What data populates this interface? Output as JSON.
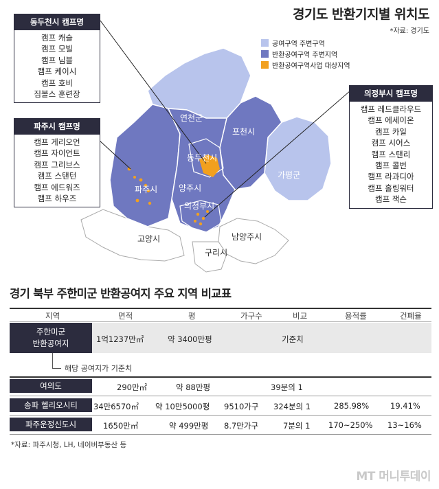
{
  "map": {
    "title": "경기도 반환기지별 위치도",
    "source": "*자료: 경기도",
    "legend": [
      {
        "label": "공여구역 주변구역",
        "color": "#b8c4ec"
      },
      {
        "label": "반환공여구역 주변지역",
        "color": "#6f78c0"
      },
      {
        "label": "반환공여구역사업 대상지역",
        "color": "#f2a01e"
      }
    ],
    "regions": {
      "yeoncheon": "연천군",
      "pocheon": "포천시",
      "dongducheon": "동두천시",
      "gapyeong": "가평군",
      "paju": "파주시",
      "yangju": "양주시",
      "uijeongbu": "의정부시",
      "goyang": "고양시",
      "namyangju": "남양주시",
      "guri": "구리시"
    },
    "camp_groups": [
      {
        "title": "동두천시 캠프명",
        "camps": [
          "캠프 캐슬",
          "캠프 모빌",
          "캠프 님블",
          "캠프 케이시",
          "캠프 호비",
          "짐볼스 훈련장"
        ]
      },
      {
        "title": "파주시 캠프명",
        "camps": [
          "캠프 게리오언",
          "캠프 자이언트",
          "캠프 그리브스",
          "캠프 스탠턴",
          "캠프 에드워즈",
          "캠프 하우즈"
        ]
      },
      {
        "title": "의정부시 캠프명",
        "camps": [
          "캠프 레드클라우드",
          "캠프 에세이온",
          "캠프 카일",
          "캠프 시어스",
          "캠프 스탠리",
          "캠프 콜번",
          "캠프 라과디아",
          "캠프 홀링워터",
          "캠프 잭슨"
        ]
      }
    ]
  },
  "table": {
    "title": "경기 북부 주한미군 반환공여지 주요 지역 비교표",
    "headers": [
      "지역",
      "면적",
      "평",
      "가구수",
      "비교",
      "용적률",
      "건폐율"
    ],
    "base_row": {
      "region_line1": "주한미군",
      "region_line2": "반환공여지",
      "area": "1억1237만㎡",
      "pyeong": "약 3400만평",
      "households": "",
      "compare": "기준치",
      "far": "",
      "bcr": ""
    },
    "base_note": "해당 공여지가 기준치",
    "rows": [
      {
        "region": "여의도",
        "area": "290만㎡",
        "pyeong": "약 88만평",
        "households": "",
        "compare": "39분의 1",
        "far": "",
        "bcr": ""
      },
      {
        "region": "송파 헬리오시티",
        "area": "34만6570㎡",
        "pyeong": "약 10만5000평",
        "households": "9510가구",
        "compare": "324분의 1",
        "far": "285.98%",
        "bcr": "19.41%"
      },
      {
        "region": "파주운정신도시",
        "area": "1650만㎡",
        "pyeong": "약 499만평",
        "households": "8.7만가구",
        "compare": "7분의 1",
        "far": "170~250%",
        "bcr": "13~16%"
      }
    ],
    "footnote": "*자료: 파주시청, LH, 네이버부동산 등"
  },
  "watermark": "MT 머니투데이"
}
